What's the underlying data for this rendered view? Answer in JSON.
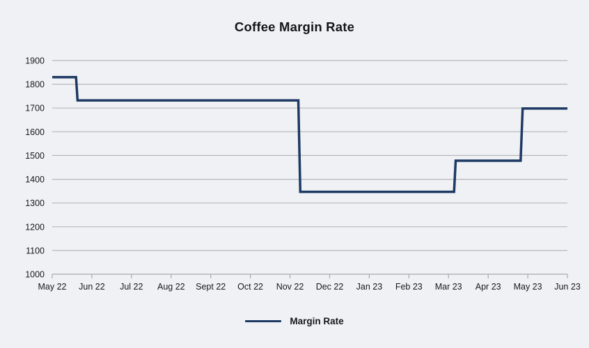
{
  "chart_data": {
    "type": "line",
    "title": "Coffee Margin Rate",
    "xlabel": "",
    "ylabel": "",
    "categories": [
      "May 22",
      "Jun 22",
      "Jul 22",
      "Aug 22",
      "Sept 22",
      "Oct 22",
      "Nov 22",
      "Dec 22",
      "Jan 23",
      "Feb 23",
      "Mar 23",
      "Apr 23",
      "May 23",
      "Jun 23"
    ],
    "y_ticks": [
      1000,
      1100,
      1200,
      1300,
      1400,
      1500,
      1600,
      1700,
      1800,
      1900
    ],
    "ylim": [
      1000,
      1900
    ],
    "grid": "horizontal",
    "legend_position": "bottom",
    "series": [
      {
        "name": "Margin Rate",
        "color": "#1e3a64",
        "step_points": [
          {
            "x": 0,
            "v": 1830
          },
          {
            "x": 0.6,
            "v": 1830
          },
          {
            "x": 0.64,
            "v": 1732
          },
          {
            "x": 6.21,
            "v": 1732
          },
          {
            "x": 6.26,
            "v": 1347
          },
          {
            "x": 10.14,
            "v": 1347
          },
          {
            "x": 10.18,
            "v": 1478
          },
          {
            "x": 11.82,
            "v": 1478
          },
          {
            "x": 11.87,
            "v": 1698
          },
          {
            "x": 13,
            "v": 1698
          }
        ]
      }
    ]
  },
  "legend": {
    "label": "Margin Rate"
  },
  "colors": {
    "background": "#f0f1f4",
    "gridline": "#b5b8bd",
    "axis": "#a7aaaf",
    "text": "#17181a",
    "line": "#1e3a64"
  }
}
